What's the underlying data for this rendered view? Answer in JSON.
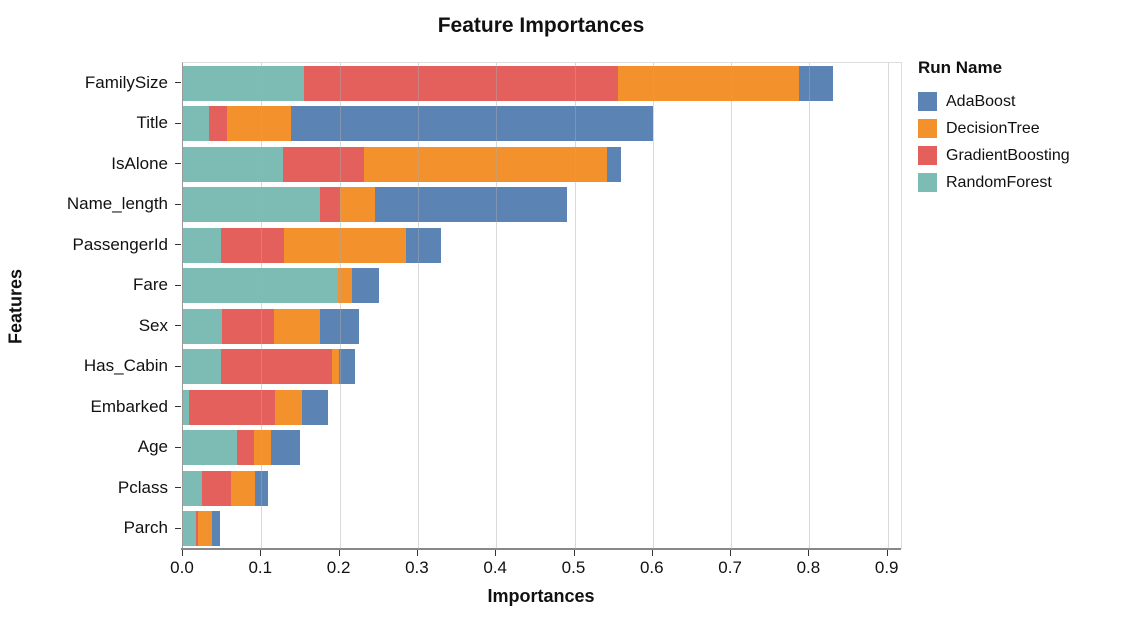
{
  "title": "Feature Importances",
  "axes": {
    "x_title": "Importances",
    "y_title": "Features",
    "x_ticks": [
      "0.0",
      "0.1",
      "0.2",
      "0.3",
      "0.4",
      "0.5",
      "0.6",
      "0.7",
      "0.8",
      "0.9"
    ]
  },
  "legend": {
    "title": "Run Name",
    "entries": [
      {
        "label": "AdaBoost",
        "color": "#5B84B5"
      },
      {
        "label": "DecisionTree",
        "color": "#F3912D"
      },
      {
        "label": "GradientBoosting",
        "color": "#E4605D"
      },
      {
        "label": "RandomForest",
        "color": "#7CBCB5"
      }
    ]
  },
  "chart_data": {
    "type": "bar",
    "orientation": "horizontal",
    "stacked": true,
    "title": "Feature Importances",
    "xlabel": "Importances",
    "ylabel": "Features",
    "xlim": [
      0,
      0.917
    ],
    "grid": true,
    "legend_position": "right",
    "categories": [
      "FamilySize",
      "Title",
      "IsAlone",
      "Name_length",
      "PassengerId",
      "Fare",
      "Sex",
      "Has_Cabin",
      "Embarked",
      "Age",
      "Pclass",
      "Parch"
    ],
    "stack_order_left_to_right": [
      "RandomForest",
      "GradientBoosting",
      "DecisionTree",
      "AdaBoost"
    ],
    "series": [
      {
        "name": "RandomForest",
        "color": "#7CBCB5",
        "values": [
          0.155,
          0.033,
          0.128,
          0.175,
          0.049,
          0.198,
          0.05,
          0.049,
          0.008,
          0.069,
          0.024,
          0.017
        ]
      },
      {
        "name": "GradientBoosting",
        "color": "#E4605D",
        "values": [
          0.4,
          0.023,
          0.103,
          0.025,
          0.08,
          0.0,
          0.066,
          0.141,
          0.11,
          0.022,
          0.037,
          0.002
        ]
      },
      {
        "name": "DecisionTree",
        "color": "#F3912D",
        "values": [
          0.232,
          0.082,
          0.311,
          0.045,
          0.156,
          0.018,
          0.059,
          0.009,
          0.034,
          0.022,
          0.031,
          0.018
        ]
      },
      {
        "name": "AdaBoost",
        "color": "#5B84B5",
        "values": [
          0.043,
          0.462,
          0.018,
          0.245,
          0.045,
          0.034,
          0.05,
          0.021,
          0.033,
          0.036,
          0.016,
          0.01
        ]
      }
    ],
    "totals": [
      0.83,
      0.6,
      0.56,
      0.49,
      0.33,
      0.25,
      0.225,
      0.22,
      0.185,
      0.149,
      0.108,
      0.047
    ]
  }
}
